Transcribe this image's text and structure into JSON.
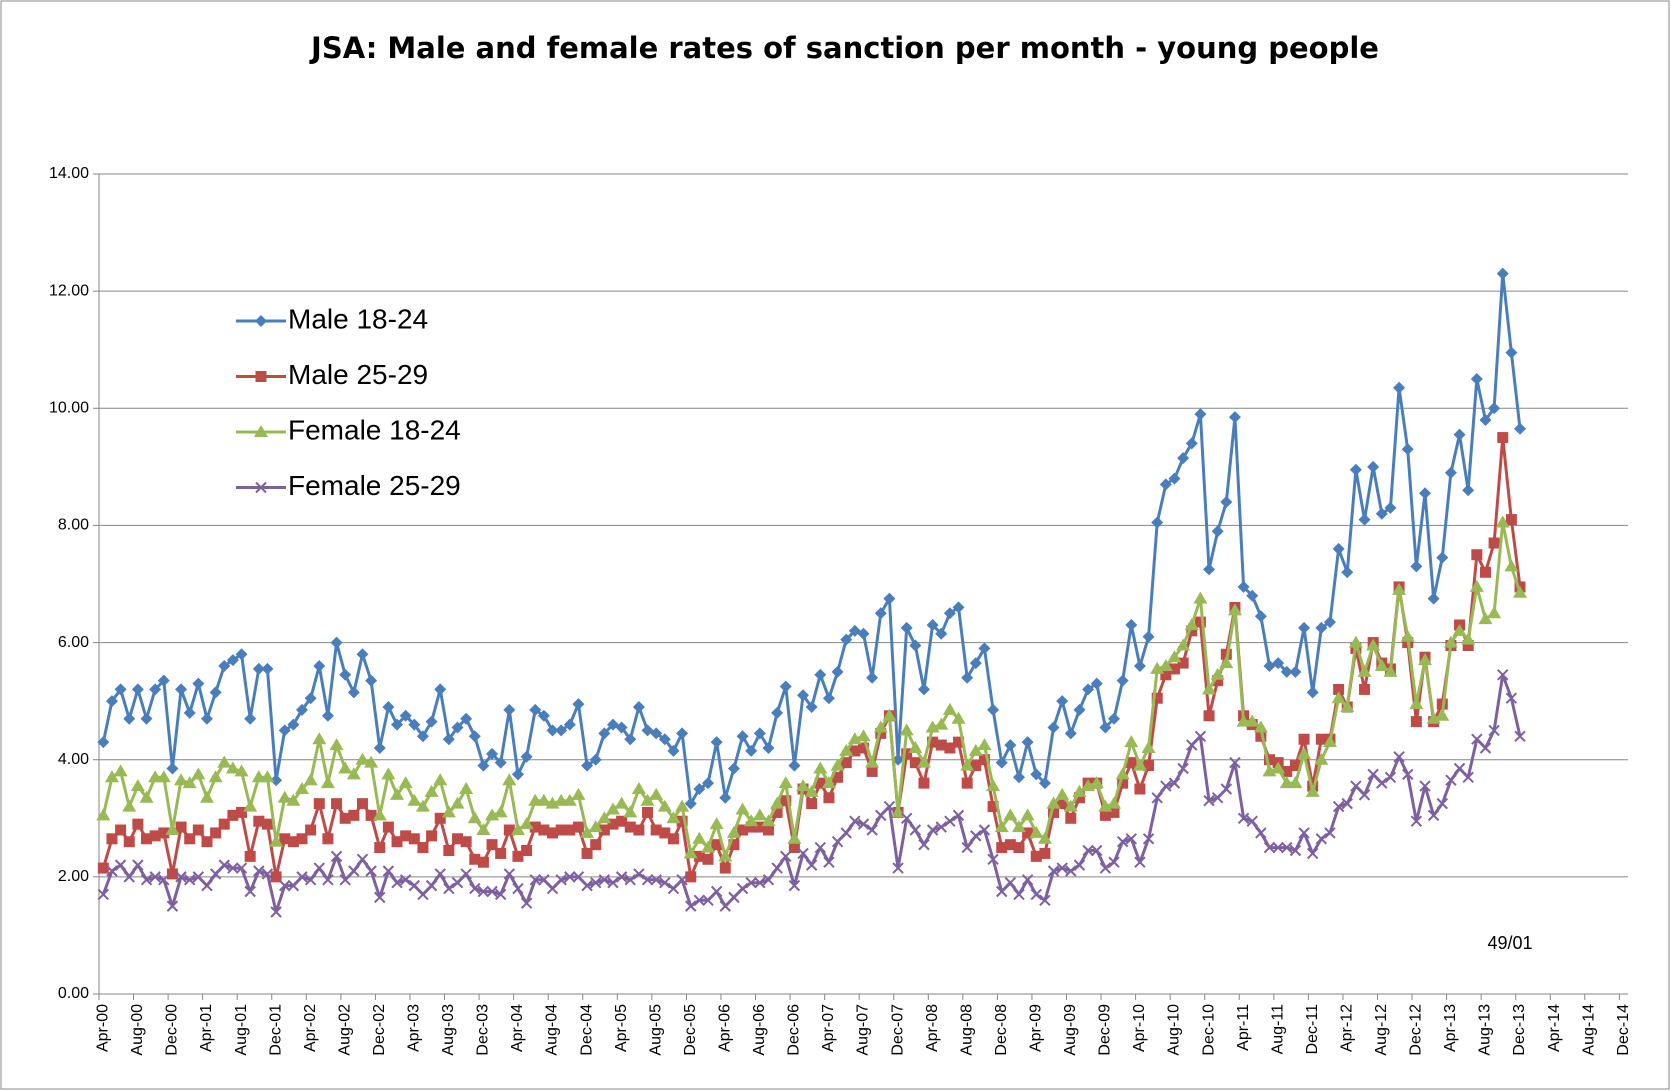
{
  "chart_data": {
    "type": "line",
    "title": "JSA: Male and female rates of sanction per month - young people",
    "annotation": "49/01",
    "grid": true,
    "legend": "upper left",
    "ylim": [
      0,
      14
    ],
    "yticks": [
      {
        "value": 0,
        "label": "0.00"
      },
      {
        "value": 2,
        "label": "2.00"
      },
      {
        "value": 4,
        "label": "4.00"
      },
      {
        "value": 6,
        "label": "6.00"
      },
      {
        "value": 8,
        "label": "8.00"
      },
      {
        "value": 10,
        "label": "10.00"
      },
      {
        "value": 12,
        "label": "12.00"
      },
      {
        "value": 14,
        "label": "14.00"
      }
    ],
    "categories": [
      "Apr-00",
      null,
      null,
      null,
      "Aug-00",
      null,
      null,
      null,
      "Dec-00",
      null,
      null,
      null,
      "Apr-01",
      null,
      null,
      null,
      "Aug-01",
      null,
      null,
      null,
      "Dec-01",
      null,
      null,
      null,
      "Apr-02",
      null,
      null,
      null,
      "Aug-02",
      null,
      null,
      null,
      "Dec-02",
      null,
      null,
      null,
      "Apr-03",
      null,
      null,
      null,
      "Aug-03",
      null,
      null,
      null,
      "Dec-03",
      null,
      null,
      null,
      "Apr-04",
      null,
      null,
      null,
      "Aug-04",
      null,
      null,
      null,
      "Dec-04",
      null,
      null,
      null,
      "Apr-05",
      null,
      null,
      null,
      "Aug-05",
      null,
      null,
      null,
      "Dec-05",
      null,
      null,
      null,
      "Apr-06",
      null,
      null,
      null,
      "Aug-06",
      null,
      null,
      null,
      "Dec-06",
      null,
      null,
      null,
      "Apr-07",
      null,
      null,
      null,
      "Aug-07",
      null,
      null,
      null,
      "Dec-07",
      null,
      null,
      null,
      "Apr-08",
      null,
      null,
      null,
      "Aug-08",
      null,
      null,
      null,
      "Dec-08",
      null,
      null,
      null,
      "Apr-09",
      null,
      null,
      null,
      "Aug-09",
      null,
      null,
      null,
      "Dec-09",
      null,
      null,
      null,
      "Apr-10",
      null,
      null,
      null,
      "Aug-10",
      null,
      null,
      null,
      "Dec-10",
      null,
      null,
      null,
      "Apr-11",
      null,
      null,
      null,
      "Aug-11",
      null,
      null,
      null,
      "Dec-11",
      null,
      null,
      null,
      "Apr-12",
      null,
      null,
      null,
      "Aug-12",
      null,
      null,
      null,
      "Dec-12",
      null,
      null,
      null,
      "Apr-13",
      null,
      null,
      null,
      "Aug-13",
      null,
      null,
      null,
      "Dec-13",
      null,
      null,
      null,
      "Apr-14",
      null,
      null,
      null,
      "Aug-14",
      null,
      null,
      null,
      "Dec-14"
    ],
    "series": [
      {
        "name": "Male 18-24",
        "color": "#4a7ebb",
        "marker": "diamond",
        "values": [
          4.3,
          5.0,
          5.2,
          4.7,
          5.2,
          4.7,
          5.2,
          5.35,
          3.85,
          5.2,
          4.8,
          5.3,
          4.7,
          5.15,
          5.6,
          5.7,
          5.8,
          4.7,
          5.55,
          5.55,
          3.65,
          4.5,
          4.6,
          4.85,
          5.05,
          5.6,
          4.75,
          6.0,
          5.45,
          5.15,
          5.8,
          5.35,
          4.2,
          4.9,
          4.6,
          4.75,
          4.6,
          4.4,
          4.65,
          5.2,
          4.35,
          4.55,
          4.7,
          4.4,
          3.9,
          4.1,
          3.95,
          4.85,
          3.75,
          4.05,
          4.85,
          4.75,
          4.5,
          4.5,
          4.6,
          4.95,
          3.9,
          4.0,
          4.45,
          4.6,
          4.55,
          4.35,
          4.9,
          4.5,
          4.45,
          4.35,
          4.15,
          4.45,
          3.25,
          3.5,
          3.6,
          4.3,
          3.35,
          3.85,
          4.4,
          4.15,
          4.45,
          4.2,
          4.8,
          5.25,
          3.9,
          5.1,
          4.9,
          5.45,
          5.05,
          5.5,
          6.05,
          6.2,
          6.15,
          5.4,
          6.5,
          6.75,
          4.0,
          6.25,
          5.95,
          5.2,
          6.3,
          6.15,
          6.5,
          6.6,
          5.4,
          5.65,
          5.9,
          4.85,
          3.95,
          4.25,
          3.7,
          4.3,
          3.75,
          3.6,
          4.55,
          5.0,
          4.45,
          4.85,
          5.2,
          5.3,
          4.55,
          4.7,
          5.35,
          6.3,
          5.6,
          6.1,
          8.05,
          8.7,
          8.8,
          9.15,
          9.4,
          9.9,
          7.25,
          7.9,
          8.4,
          9.85,
          6.95,
          6.8,
          6.45,
          5.6,
          5.65,
          5.5,
          5.5,
          6.25,
          5.15,
          6.25,
          6.35,
          7.6,
          7.2,
          8.95,
          8.1,
          9.0,
          8.2,
          8.3,
          10.35,
          9.3,
          7.3,
          8.55,
          6.75,
          7.45,
          8.9,
          9.55,
          8.6,
          10.5,
          9.8,
          10.0,
          12.3,
          10.95,
          9.65,
          null,
          null,
          null,
          null,
          null,
          null,
          null,
          null,
          null,
          null,
          null,
          null
        ]
      },
      {
        "name": "Male 25-29",
        "color": "#be4b48",
        "marker": "square",
        "values": [
          2.15,
          2.65,
          2.8,
          2.6,
          2.9,
          2.65,
          2.7,
          2.75,
          2.05,
          2.85,
          2.65,
          2.8,
          2.6,
          2.75,
          2.9,
          3.05,
          3.1,
          2.35,
          2.95,
          2.9,
          2.0,
          2.65,
          2.6,
          2.65,
          2.8,
          3.25,
          2.65,
          3.25,
          3.0,
          3.05,
          3.25,
          3.05,
          2.5,
          2.85,
          2.6,
          2.7,
          2.65,
          2.5,
          2.7,
          3.0,
          2.45,
          2.65,
          2.6,
          2.3,
          2.25,
          2.55,
          2.4,
          2.8,
          2.35,
          2.45,
          2.85,
          2.8,
          2.75,
          2.8,
          2.8,
          2.85,
          2.4,
          2.55,
          2.8,
          2.9,
          2.95,
          2.85,
          2.8,
          3.1,
          2.8,
          2.75,
          2.65,
          2.95,
          2.0,
          2.35,
          2.3,
          2.55,
          2.15,
          2.55,
          2.8,
          2.85,
          2.85,
          2.8,
          3.1,
          3.3,
          2.5,
          3.5,
          3.25,
          3.6,
          3.35,
          3.7,
          3.95,
          4.15,
          4.2,
          3.8,
          4.45,
          4.75,
          3.1,
          4.1,
          3.95,
          3.6,
          4.3,
          4.25,
          4.2,
          4.3,
          3.6,
          3.9,
          4.0,
          3.2,
          2.5,
          2.55,
          2.5,
          2.75,
          2.35,
          2.4,
          3.1,
          3.25,
          3.0,
          3.35,
          3.6,
          3.6,
          3.05,
          3.1,
          3.6,
          3.95,
          3.5,
          3.9,
          5.05,
          5.45,
          5.55,
          5.65,
          6.2,
          6.35,
          4.75,
          5.35,
          5.8,
          6.6,
          4.75,
          4.6,
          4.4,
          4.0,
          3.95,
          3.8,
          3.9,
          4.35,
          3.55,
          4.35,
          4.35,
          5.2,
          4.9,
          5.9,
          5.2,
          6.0,
          5.65,
          5.55,
          6.95,
          6.0,
          4.65,
          5.75,
          4.65,
          4.95,
          5.95,
          6.3,
          5.95,
          7.5,
          7.2,
          7.7,
          9.5,
          8.1,
          6.95,
          null,
          null,
          null,
          null,
          null,
          null,
          null,
          null,
          null,
          null,
          null,
          null
        ]
      },
      {
        "name": "Female 18-24",
        "color": "#98b954",
        "marker": "triangle",
        "values": [
          3.05,
          3.7,
          3.8,
          3.2,
          3.55,
          3.35,
          3.7,
          3.7,
          2.8,
          3.65,
          3.6,
          3.75,
          3.35,
          3.7,
          3.95,
          3.85,
          3.8,
          3.2,
          3.7,
          3.7,
          2.6,
          3.35,
          3.3,
          3.5,
          3.65,
          4.35,
          3.6,
          4.25,
          3.85,
          3.75,
          4.0,
          3.95,
          3.05,
          3.75,
          3.4,
          3.6,
          3.3,
          3.2,
          3.45,
          3.65,
          3.1,
          3.25,
          3.5,
          3.0,
          2.8,
          3.05,
          3.1,
          3.65,
          2.8,
          2.9,
          3.3,
          3.3,
          3.25,
          3.3,
          3.3,
          3.4,
          2.75,
          2.85,
          3.0,
          3.15,
          3.25,
          3.1,
          3.5,
          3.3,
          3.4,
          3.2,
          3.0,
          3.2,
          2.4,
          2.65,
          2.5,
          2.9,
          2.35,
          2.75,
          3.15,
          2.95,
          3.05,
          2.95,
          3.25,
          3.6,
          2.65,
          3.55,
          3.45,
          3.85,
          3.6,
          3.9,
          4.15,
          4.35,
          4.4,
          3.95,
          4.55,
          4.75,
          3.1,
          4.5,
          4.2,
          3.95,
          4.55,
          4.6,
          4.85,
          4.7,
          3.9,
          4.15,
          4.25,
          3.55,
          2.85,
          3.05,
          2.85,
          3.05,
          2.75,
          2.65,
          3.25,
          3.4,
          3.2,
          3.45,
          3.55,
          3.6,
          3.2,
          3.25,
          3.75,
          4.3,
          3.9,
          4.2,
          5.55,
          5.6,
          5.75,
          5.95,
          6.3,
          6.75,
          5.2,
          5.45,
          5.65,
          6.55,
          4.65,
          4.65,
          4.55,
          3.8,
          3.85,
          3.6,
          3.6,
          4.1,
          3.45,
          4.0,
          4.3,
          5.05,
          4.9,
          6.0,
          5.5,
          5.95,
          5.6,
          5.5,
          6.9,
          6.1,
          4.95,
          5.7,
          4.7,
          4.75,
          6.0,
          6.2,
          6.05,
          6.95,
          6.4,
          6.5,
          8.05,
          7.3,
          6.85,
          null,
          null,
          null,
          null,
          null,
          null,
          null,
          null,
          null,
          null,
          null,
          null
        ]
      },
      {
        "name": "Female 25-29",
        "color": "#7d60a0",
        "marker": "x",
        "values": [
          1.7,
          2.1,
          2.2,
          2.0,
          2.2,
          1.95,
          2.0,
          1.95,
          1.5,
          2.0,
          1.95,
          2.0,
          1.85,
          2.05,
          2.2,
          2.15,
          2.15,
          1.75,
          2.1,
          2.05,
          1.4,
          1.85,
          1.85,
          2.0,
          1.95,
          2.15,
          1.95,
          2.35,
          1.95,
          2.1,
          2.3,
          2.1,
          1.65,
          2.1,
          1.9,
          1.95,
          1.85,
          1.7,
          1.85,
          2.05,
          1.8,
          1.9,
          2.05,
          1.8,
          1.75,
          1.75,
          1.7,
          2.05,
          1.8,
          1.55,
          1.95,
          1.95,
          1.8,
          1.95,
          2.0,
          2.0,
          1.85,
          1.9,
          1.95,
          1.9,
          2.0,
          1.95,
          2.05,
          1.95,
          1.95,
          1.9,
          1.8,
          1.95,
          1.5,
          1.6,
          1.6,
          1.75,
          1.5,
          1.65,
          1.8,
          1.9,
          1.9,
          1.95,
          2.15,
          2.35,
          1.85,
          2.4,
          2.2,
          2.5,
          2.25,
          2.6,
          2.75,
          2.95,
          2.9,
          2.8,
          3.05,
          3.2,
          2.15,
          3.0,
          2.8,
          2.55,
          2.8,
          2.85,
          2.95,
          3.05,
          2.5,
          2.7,
          2.8,
          2.3,
          1.75,
          1.9,
          1.7,
          1.95,
          1.7,
          1.6,
          2.1,
          2.15,
          2.1,
          2.2,
          2.45,
          2.45,
          2.15,
          2.25,
          2.6,
          2.65,
          2.25,
          2.65,
          3.35,
          3.55,
          3.6,
          3.85,
          4.25,
          4.4,
          3.3,
          3.35,
          3.5,
          3.95,
          3.0,
          2.95,
          2.75,
          2.5,
          2.5,
          2.5,
          2.45,
          2.75,
          2.4,
          2.65,
          2.75,
          3.2,
          3.25,
          3.55,
          3.4,
          3.75,
          3.6,
          3.7,
          4.05,
          3.75,
          2.95,
          3.55,
          3.05,
          3.25,
          3.65,
          3.85,
          3.7,
          4.35,
          4.2,
          4.5,
          5.45,
          5.05,
          4.4,
          null,
          null,
          null,
          null,
          null,
          null,
          null,
          null,
          null,
          null,
          null,
          null
        ]
      }
    ]
  }
}
